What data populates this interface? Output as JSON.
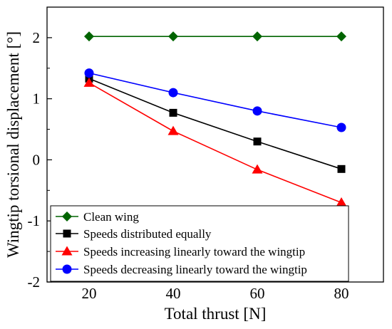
{
  "chart_data": {
    "type": "line",
    "title": "",
    "xlabel": "Total thrust [N]",
    "ylabel": "Wingtip torsional displacement [°]",
    "xlim": [
      10,
      90
    ],
    "ylim": [
      -2,
      2.5
    ],
    "x_ticks": [
      20,
      40,
      60,
      80
    ],
    "y_ticks": [
      -2,
      -1,
      0,
      1,
      2
    ],
    "x_tick_labels": [
      "20",
      "40",
      "60",
      "80"
    ],
    "y_tick_labels": [
      "-2",
      "-1",
      "0",
      "1",
      "2"
    ],
    "x": [
      20,
      40,
      60,
      80
    ],
    "grid": false,
    "legend_position": "bottom-left",
    "series": [
      {
        "name": "Clean wing",
        "values": [
          2.02,
          2.02,
          2.02,
          2.02
        ],
        "color": "#006400",
        "marker": "diamond"
      },
      {
        "name": "Speeds distributed equally",
        "values": [
          1.33,
          0.77,
          0.3,
          -0.15
        ],
        "color": "#000000",
        "marker": "square"
      },
      {
        "name": "Speeds increasing linearly toward the wingtip",
        "values": [
          1.26,
          0.47,
          -0.16,
          -0.7
        ],
        "color": "#ff0000",
        "marker": "triangle"
      },
      {
        "name": "Speeds decreasing linearly toward the wingtip",
        "values": [
          1.42,
          1.1,
          0.8,
          0.53
        ],
        "color": "#0000ff",
        "marker": "circle"
      }
    ]
  }
}
